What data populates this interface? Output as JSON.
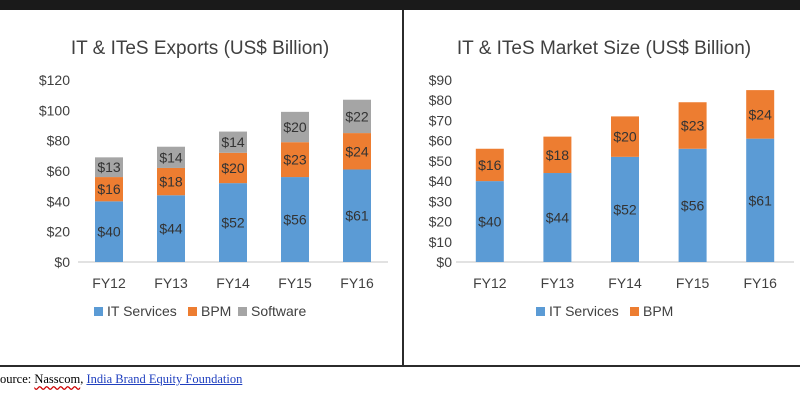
{
  "colors": {
    "it_services": "#5b9bd5",
    "bpm": "#ed7d31",
    "software": "#a5a5a5",
    "axis": "#d9d9d9",
    "text": "#404040",
    "bar_label": "#333333"
  },
  "source": {
    "prefix": "ource: ",
    "name": "Nasscom",
    "separator": ", ",
    "link_text": "India Brand Equity Foundation"
  },
  "chart_data": [
    {
      "type": "bar",
      "stacked": true,
      "title": "IT & ITeS Exports (US$ Billion)",
      "categories": [
        "FY12",
        "FY13",
        "FY14",
        "FY15",
        "FY16"
      ],
      "ylim": [
        0,
        120
      ],
      "yticks": [
        0,
        20,
        40,
        60,
        80,
        100,
        120
      ],
      "ytick_labels": [
        "$0",
        "$20",
        "$40",
        "$60",
        "$80",
        "$100",
        "$120"
      ],
      "grid": false,
      "legend": "bottom",
      "series": [
        {
          "name": "IT Services",
          "color": "#5b9bd5",
          "values": [
            40,
            44,
            52,
            56,
            61
          ],
          "labels": [
            "$40",
            "$44",
            "$52",
            "$56",
            "$61"
          ]
        },
        {
          "name": "BPM",
          "color": "#ed7d31",
          "values": [
            16,
            18,
            20,
            23,
            24
          ],
          "labels": [
            "$16",
            "$18",
            "$20",
            "$23",
            "$24"
          ]
        },
        {
          "name": "Software",
          "color": "#a5a5a5",
          "values": [
            13,
            14,
            14,
            20,
            22
          ],
          "labels": [
            "$13",
            "$14",
            "$14",
            "$20",
            "$22"
          ]
        }
      ]
    },
    {
      "type": "bar",
      "stacked": true,
      "title": "IT & ITeS Market Size (US$ Billion)",
      "categories": [
        "FY12",
        "FY13",
        "FY14",
        "FY15",
        "FY16"
      ],
      "ylim": [
        0,
        90
      ],
      "yticks": [
        0,
        10,
        20,
        30,
        40,
        50,
        60,
        70,
        80,
        90
      ],
      "ytick_labels": [
        "$0",
        "$10",
        "$20",
        "$30",
        "$40",
        "$50",
        "$60",
        "$70",
        "$80",
        "$90"
      ],
      "grid": false,
      "legend": "bottom",
      "series": [
        {
          "name": "IT Services",
          "color": "#5b9bd5",
          "values": [
            40,
            44,
            52,
            56,
            61
          ],
          "labels": [
            "$40",
            "$44",
            "$52",
            "$56",
            "$61"
          ]
        },
        {
          "name": "BPM",
          "color": "#ed7d31",
          "values": [
            16,
            18,
            20,
            23,
            24
          ],
          "labels": [
            "$16",
            "$18",
            "$20",
            "$23",
            "$24"
          ]
        }
      ]
    }
  ]
}
